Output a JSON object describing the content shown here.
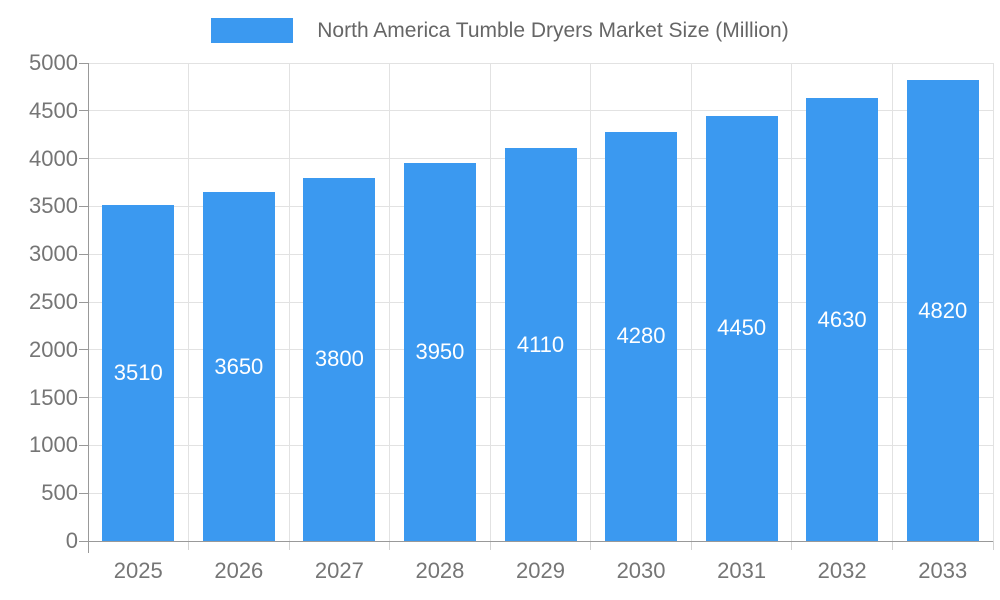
{
  "legend": {
    "label": "North America Tumble Dryers Market Size (Million)"
  },
  "chart_data": {
    "type": "bar",
    "title": "North America Tumble Dryers Market Size (Million)",
    "categories": [
      "2025",
      "2026",
      "2027",
      "2028",
      "2029",
      "2030",
      "2031",
      "2032",
      "2033"
    ],
    "values": [
      3510,
      3650,
      3800,
      3950,
      4110,
      4280,
      4450,
      4630,
      4820
    ],
    "value_labels": [
      "3510",
      "3650",
      "3800",
      "3950",
      "4110",
      "4280",
      "4450",
      "4630",
      "4820"
    ],
    "ytick_labels": [
      "0",
      "500",
      "1000",
      "1500",
      "2000",
      "2500",
      "3000",
      "3500",
      "4000",
      "4500",
      "5000"
    ],
    "ylim": [
      0,
      5000
    ],
    "ytick_step": 500,
    "xlabel": "",
    "ylabel": "",
    "grid": true,
    "legend_position": "top",
    "value_label_position": "inside-center"
  },
  "colors": {
    "bar": "#3b99f0",
    "value_text": "#ffffff",
    "grid": "#e2e2e2",
    "axis_line": "#999999",
    "x_tick": "#d2d2d2",
    "axis_text": "#757575",
    "legend_text": "#666666",
    "background": "#ffffff"
  }
}
